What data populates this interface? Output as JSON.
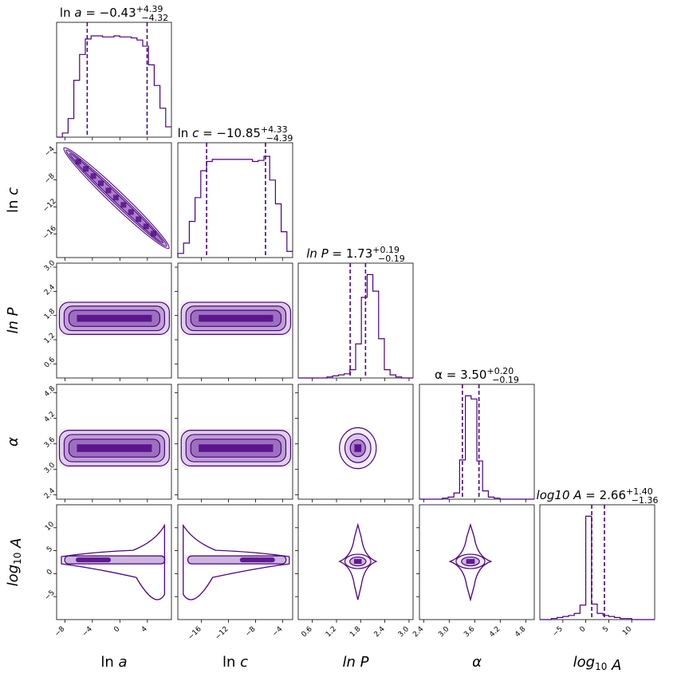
{
  "chart_data": {
    "type": "corner",
    "color": "#4b0082",
    "shade": "#7b3fa8",
    "parameters": [
      {
        "key": "ln_a",
        "label": "ln a",
        "label_parts": [
          [
            "ln ",
            false
          ],
          [
            "a",
            true
          ]
        ],
        "range": [
          -9.2,
          7.5
        ],
        "ticks": [
          -8,
          -4,
          0,
          4
        ],
        "tick_labels": [
          "−8",
          "−4",
          "0",
          "4"
        ],
        "title": {
          "prefix": "ln ",
          "var": "a",
          "italic_var": true,
          "value": "−0.43",
          "plus": "+4.39",
          "minus": "−4.32"
        },
        "quantiles": [
          -4.75,
          3.96
        ],
        "hist": [
          0,
          4,
          18,
          55,
          80,
          95,
          98,
          98,
          97,
          97,
          98,
          97,
          97,
          96,
          94,
          88,
          70,
          50,
          28,
          10
        ]
      },
      {
        "key": "ln_c",
        "label": "ln c",
        "label_parts": [
          [
            "ln ",
            false
          ],
          [
            "c",
            true
          ]
        ],
        "range": [
          -19.5,
          -2.5
        ],
        "ticks": [
          -16,
          -12,
          -8,
          -4
        ],
        "tick_labels": [
          "−16",
          "−12",
          "−8",
          "−4"
        ],
        "title": {
          "prefix": "ln ",
          "var": "c",
          "italic_var": true,
          "value": "−10.85",
          "plus": "+4.33",
          "minus": "−4.39"
        },
        "quantiles": [
          -15.24,
          -6.52
        ],
        "hist": [
          4,
          14,
          35,
          58,
          84,
          93,
          95,
          95,
          95,
          95,
          95,
          95,
          95,
          93,
          94,
          98,
          75,
          52,
          25,
          6
        ]
      },
      {
        "key": "ln_P",
        "label": "ln P",
        "label_parts": [
          [
            "ln P",
            true
          ]
        ],
        "range": [
          0.25,
          3.1
        ],
        "ticks": [
          0.6,
          1.2,
          1.8,
          2.4,
          3.0
        ],
        "tick_labels": [
          "0.6",
          "1.2",
          "1.8",
          "2.4",
          "3.0"
        ],
        "title": {
          "prefix": "",
          "var": "ln P",
          "italic_var": true,
          "value": "1.73",
          "plus": "+0.19",
          "minus": "−0.19"
        },
        "quantiles": [
          1.54,
          1.92
        ],
        "hist": [
          0,
          0,
          0,
          0,
          0,
          1,
          2,
          3,
          4,
          8,
          33,
          78,
          100,
          84,
          38,
          8,
          3,
          1,
          0,
          0
        ]
      },
      {
        "key": "alpha",
        "label": "α",
        "label_parts": [
          [
            "α",
            true
          ]
        ],
        "range": [
          2.3,
          5.0
        ],
        "ticks": [
          2.4,
          3.0,
          3.6,
          4.2,
          4.8
        ],
        "tick_labels": [
          "2.4",
          "3.0",
          "3.6",
          "4.2",
          "4.8"
        ],
        "title": {
          "prefix": "",
          "var": "α",
          "italic_var": false,
          "value": "3.50",
          "plus": "+0.20",
          "minus": "−0.19"
        },
        "quantiles": [
          3.31,
          3.7
        ],
        "hist": [
          0,
          0,
          0,
          0,
          1,
          2,
          6,
          38,
          100,
          97,
          37,
          8,
          2,
          1,
          0,
          0,
          0,
          0,
          0,
          0
        ]
      },
      {
        "key": "log10_A",
        "label": "log10 A",
        "label_parts": [
          [
            "log",
            true
          ],
          [
            "10",
            false,
            "sub"
          ],
          [
            " A",
            true
          ]
        ],
        "range": [
          -10,
          15
        ],
        "ticks": [
          -5,
          0,
          5,
          10
        ],
        "tick_labels": [
          "−5",
          "0",
          "5",
          "10"
        ],
        "title": {
          "prefix": "",
          "var": "log10 A",
          "italic_var": true,
          "value": "2.66",
          "plus": "+1.40",
          "minus": "−1.36"
        },
        "quantiles": [
          1.3,
          4.06
        ],
        "hist": [
          0,
          0,
          1,
          2,
          3,
          4,
          6,
          14,
          100,
          15,
          6,
          4,
          3,
          2,
          1,
          1,
          0,
          0,
          0,
          0
        ]
      }
    ]
  }
}
